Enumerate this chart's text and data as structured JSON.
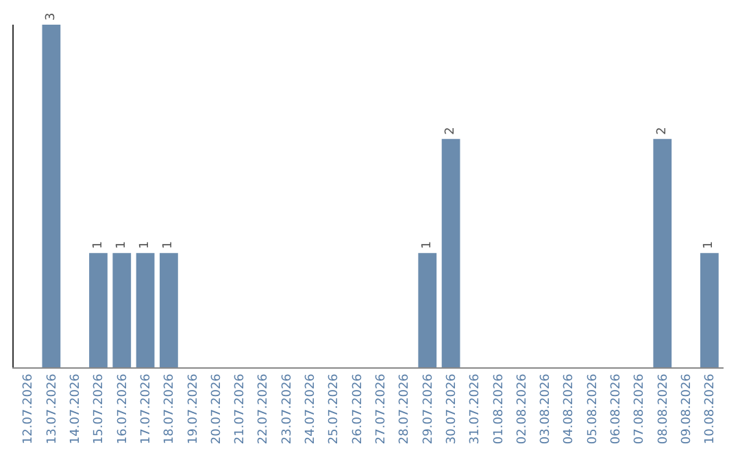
{
  "chart_data": {
    "type": "bar",
    "categories": [
      "12.07.2026",
      "13.07.2026",
      "14.07.2026",
      "15.07.2026",
      "16.07.2026",
      "17.07.2026",
      "18.07.2026",
      "19.07.2026",
      "20.07.2026",
      "21.07.2026",
      "22.07.2026",
      "23.07.2026",
      "24.07.2026",
      "25.07.2026",
      "26.07.2026",
      "27.07.2026",
      "28.07.2026",
      "29.07.2026",
      "30.07.2026",
      "31.07.2026",
      "01.08.2026",
      "02.08.2026",
      "03.08.2026",
      "04.08.2026",
      "05.08.2026",
      "06.08.2026",
      "07.08.2026",
      "08.08.2026",
      "09.08.2026",
      "10.08.2026"
    ],
    "values": [
      0,
      3,
      0,
      1,
      1,
      1,
      1,
      0,
      0,
      0,
      0,
      0,
      0,
      0,
      0,
      0,
      0,
      1,
      2,
      0,
      0,
      0,
      0,
      0,
      0,
      0,
      0,
      2,
      0,
      1
    ],
    "value_labels": [
      null,
      "3",
      null,
      "1",
      "1",
      "1",
      "1",
      null,
      null,
      null,
      null,
      null,
      null,
      null,
      null,
      null,
      null,
      "1",
      "2",
      null,
      null,
      null,
      null,
      null,
      null,
      null,
      null,
      "2",
      null,
      "1"
    ],
    "color": "#6b8cae"
  }
}
